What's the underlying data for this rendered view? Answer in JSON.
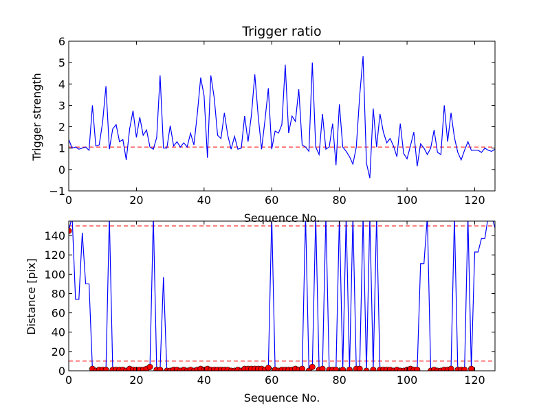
{
  "chart_data": [
    {
      "type": "line",
      "title": "Trigger ratio",
      "xlabel": "Sequence No.",
      "ylabel": "Trigger strength",
      "xlim": [
        0,
        126
      ],
      "ylim": [
        -1,
        6
      ],
      "xticks": [
        0,
        20,
        40,
        60,
        80,
        100,
        120
      ],
      "yticks": [
        -1,
        0,
        1,
        2,
        3,
        4,
        5,
        6
      ],
      "xtick_labels": [
        "0",
        "20",
        "40",
        "60",
        "80",
        "100",
        "120"
      ],
      "ytick_labels": [
        "−1",
        "0",
        "1",
        "2",
        "3",
        "4",
        "5",
        "6"
      ],
      "grid": false,
      "threshold": {
        "value": 1.05,
        "color": "#ff0000",
        "style": "dashed"
      },
      "series": [
        {
          "color": "#0000ff",
          "x": [
            0,
            1,
            2,
            3,
            4,
            5,
            6,
            7,
            8,
            9,
            10,
            11,
            12,
            13,
            14,
            15,
            16,
            17,
            18,
            19,
            20,
            21,
            22,
            23,
            24,
            25,
            26,
            27,
            28,
            29,
            30,
            31,
            32,
            33,
            34,
            35,
            36,
            37,
            38,
            39,
            40,
            41,
            42,
            43,
            44,
            45,
            46,
            47,
            48,
            49,
            50,
            51,
            52,
            53,
            54,
            55,
            56,
            57,
            58,
            59,
            60,
            61,
            62,
            63,
            64,
            65,
            66,
            67,
            68,
            69,
            70,
            71,
            72,
            73,
            74,
            75,
            76,
            77,
            78,
            79,
            80,
            81,
            82,
            83,
            84,
            85,
            86,
            87,
            88,
            89,
            90,
            91,
            92,
            93,
            94,
            95,
            96,
            97,
            98,
            99,
            100,
            101,
            102,
            103,
            104,
            105,
            106,
            107,
            108,
            109,
            110,
            111,
            112,
            113,
            114,
            115,
            116,
            117,
            118,
            119,
            120,
            121,
            122,
            123,
            124,
            125,
            126
          ],
          "y": [
            1.4,
            1.0,
            1.05,
            0.95,
            1.0,
            1.05,
            0.9,
            3.0,
            1.1,
            1.15,
            2.2,
            3.9,
            0.95,
            1.9,
            2.1,
            1.3,
            1.4,
            0.45,
            1.9,
            2.75,
            1.5,
            2.45,
            1.6,
            1.85,
            1.05,
            0.95,
            1.5,
            4.4,
            1.0,
            1.0,
            2.05,
            1.1,
            1.3,
            1.05,
            1.25,
            1.05,
            1.7,
            1.15,
            2.6,
            4.3,
            3.45,
            0.55,
            4.4,
            3.35,
            1.6,
            1.45,
            2.65,
            1.6,
            0.95,
            1.55,
            0.95,
            1.0,
            2.5,
            1.3,
            2.55,
            4.45,
            2.5,
            0.95,
            2.3,
            3.8,
            0.95,
            1.8,
            1.7,
            2.1,
            4.9,
            1.7,
            2.5,
            2.25,
            3.75,
            1.15,
            1.05,
            0.85,
            5.0,
            1.05,
            0.7,
            2.6,
            0.95,
            1.05,
            2.15,
            0.2,
            3.05,
            1.05,
            0.85,
            0.6,
            0.25,
            1.05,
            3.45,
            5.3,
            0.3,
            -0.4,
            2.85,
            1.05,
            2.6,
            1.75,
            1.25,
            1.45,
            1.1,
            0.6,
            2.15,
            0.75,
            0.5,
            1.1,
            1.75,
            0.15,
            1.2,
            1.0,
            0.7,
            1.0,
            1.85,
            0.8,
            0.7,
            3.0,
            1.3,
            2.65,
            1.5,
            0.8,
            0.45,
            0.9,
            1.3,
            0.9,
            0.9,
            0.9,
            0.8,
            1.0,
            0.9,
            0.85,
            0.95
          ]
        }
      ]
    },
    {
      "type": "line",
      "title": "",
      "xlabel": "Sequence No.",
      "ylabel": "Distance [pix]",
      "xlim": [
        0,
        126
      ],
      "ylim": [
        0,
        155
      ],
      "xticks": [
        0,
        20,
        40,
        60,
        80,
        100,
        120
      ],
      "yticks": [
        0,
        20,
        40,
        60,
        80,
        100,
        120,
        140
      ],
      "xtick_labels": [
        "0",
        "20",
        "40",
        "60",
        "80",
        "100",
        "120"
      ],
      "ytick_labels": [
        "0",
        "20",
        "40",
        "60",
        "80",
        "100",
        "120",
        "140"
      ],
      "grid": false,
      "thresholds": [
        {
          "value": 150,
          "color": "#ff0000",
          "style": "dashed"
        },
        {
          "value": 10,
          "color": "#ff0000",
          "style": "dashed"
        }
      ],
      "series": [
        {
          "color": "#0000ff",
          "x": [
            0,
            1,
            2,
            3,
            4,
            5,
            6,
            7,
            8,
            9,
            10,
            11,
            12,
            13,
            14,
            15,
            16,
            17,
            18,
            19,
            20,
            21,
            22,
            23,
            24,
            25,
            26,
            27,
            28,
            29,
            30,
            31,
            32,
            33,
            34,
            35,
            36,
            37,
            38,
            39,
            40,
            41,
            42,
            43,
            44,
            45,
            46,
            47,
            48,
            49,
            50,
            51,
            52,
            53,
            54,
            55,
            56,
            57,
            58,
            59,
            60,
            61,
            62,
            63,
            64,
            65,
            66,
            67,
            68,
            69,
            70,
            71,
            72,
            73,
            74,
            75,
            76,
            77,
            78,
            79,
            80,
            81,
            82,
            83,
            84,
            85,
            86,
            87,
            88,
            89,
            90,
            91,
            92,
            93,
            94,
            95,
            96,
            97,
            98,
            99,
            100,
            101,
            102,
            103,
            104,
            105,
            106,
            107,
            108,
            109,
            110,
            111,
            112,
            113,
            114,
            115,
            116,
            117,
            118,
            119,
            120,
            121,
            122,
            123,
            124,
            125,
            126
          ],
          "y": [
            145,
            160,
            74,
            74,
            143,
            90,
            90,
            2,
            0,
            1,
            1,
            1,
            160,
            1,
            1,
            1,
            1,
            0,
            2,
            1,
            1,
            1,
            1,
            2,
            4,
            160,
            1,
            1,
            97,
            0,
            0,
            1,
            1,
            0,
            1,
            0,
            1,
            0,
            1,
            2,
            1,
            2,
            1,
            1,
            1,
            1,
            1,
            1,
            0,
            0,
            1,
            0,
            2,
            2,
            2,
            2,
            2,
            2,
            1,
            3,
            160,
            1,
            0,
            1,
            1,
            1,
            1,
            2,
            1,
            2,
            160,
            0,
            4,
            160,
            1,
            2,
            160,
            1,
            1,
            1,
            160,
            1,
            160,
            1,
            160,
            2,
            2,
            160,
            0,
            160,
            1,
            160,
            1,
            1,
            1,
            1,
            0,
            1,
            0,
            0,
            1,
            2,
            1,
            1,
            111,
            111,
            160,
            0,
            1,
            0,
            0,
            1,
            1,
            2,
            160,
            1,
            1,
            1,
            160,
            2,
            123,
            123,
            137,
            137,
            160,
            160,
            148
          ],
          "markers": {
            "color": "#ff0000",
            "x": [
              0,
              7,
              8,
              9,
              10,
              11,
              13,
              14,
              15,
              16,
              17,
              18,
              19,
              20,
              21,
              22,
              23,
              24,
              26,
              27,
              29,
              30,
              31,
              32,
              33,
              34,
              35,
              36,
              37,
              38,
              39,
              40,
              41,
              42,
              43,
              44,
              45,
              46,
              47,
              48,
              49,
              50,
              51,
              52,
              53,
              54,
              55,
              56,
              57,
              58,
              59,
              61,
              62,
              63,
              64,
              65,
              66,
              67,
              68,
              69,
              71,
              72,
              74,
              75,
              77,
              78,
              79,
              81,
              83,
              85,
              86,
              88,
              90,
              92,
              93,
              94,
              95,
              96,
              97,
              98,
              99,
              100,
              101,
              102,
              103,
              107,
              108,
              109,
              110,
              111,
              112,
              113,
              115,
              116,
              117,
              119
            ],
            "y": [
              145,
              2,
              0,
              1,
              1,
              1,
              1,
              1,
              1,
              1,
              0,
              2,
              1,
              1,
              1,
              1,
              2,
              4,
              1,
              1,
              0,
              0,
              1,
              1,
              0,
              1,
              0,
              1,
              0,
              1,
              2,
              1,
              2,
              1,
              1,
              1,
              1,
              1,
              1,
              0,
              0,
              1,
              0,
              2,
              2,
              2,
              2,
              2,
              2,
              1,
              3,
              1,
              0,
              1,
              1,
              1,
              1,
              2,
              1,
              2,
              0,
              4,
              1,
              2,
              1,
              1,
              1,
              1,
              1,
              2,
              2,
              0,
              1,
              1,
              1,
              1,
              1,
              0,
              1,
              0,
              0,
              1,
              2,
              1,
              1,
              0,
              1,
              0,
              0,
              1,
              1,
              2,
              1,
              1,
              1,
              2
            ]
          }
        }
      ]
    }
  ]
}
